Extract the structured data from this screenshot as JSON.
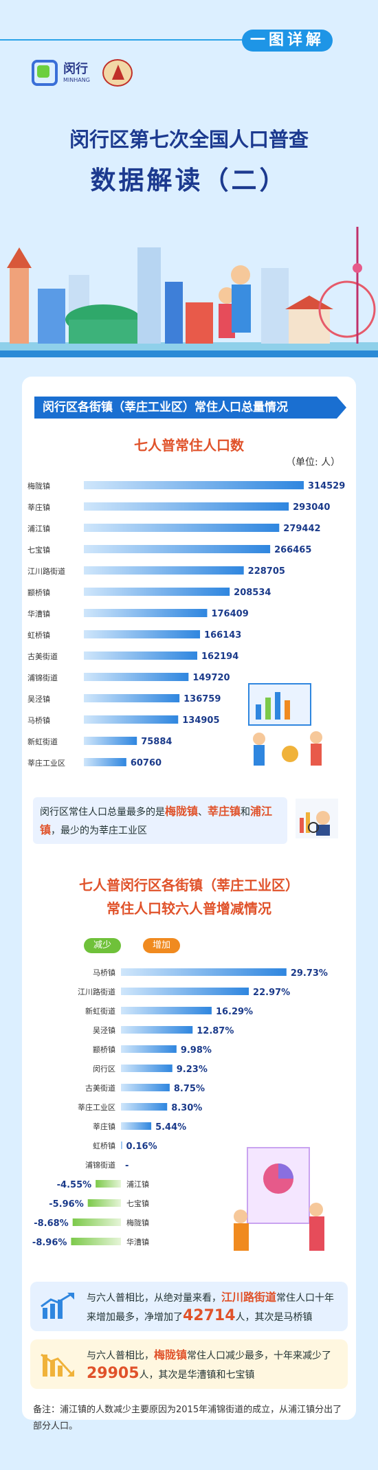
{
  "header": {
    "tag": "一图详解",
    "logo_text": "闵行",
    "logo_en": "MINHANG",
    "title_line1": "闵行区第七次全国人口普查",
    "title_line2": "数据解读（二）"
  },
  "section1": {
    "banner": "闵行区各街镇（莘庄工业区）常住人口总量情况",
    "chart_title": "七人普常住人口数",
    "unit": "（单位: 人）"
  },
  "summary1": {
    "p1": "闵行区常住人口总量最多的是",
    "h1": "梅陇镇",
    "p2": "、",
    "h2": "莘庄镇",
    "p3": "和",
    "h3": "浦江镇",
    "p4": "，最少的为莘庄工业区"
  },
  "section2": {
    "title_a": "七人普闵行区各街镇（莘庄工业区）",
    "title_b": "常住人口较六人普增减情况",
    "legend_dec": "减少",
    "legend_inc": "增加"
  },
  "note1": {
    "p1": "与六人普相比，从绝对量来看，",
    "h1": "江川路街道",
    "p2": "常住人口十年来增加最多，净增加了",
    "big": "42714",
    "p3": "人，其次是马桥镇"
  },
  "note2": {
    "p1": "与六人普相比，",
    "h1": "梅陇镇",
    "p2": "常住人口减少最多，十年来减少了",
    "big": "29905",
    "p3": "人，其次是华漕镇和七宝镇"
  },
  "footnote": "备注：浦江镇的人数减少主要原因为2015年浦锦街道的成立，从浦江镇分出了部分人口。",
  "colors": {
    "accent": "#1e95e6",
    "bar_blue": "#2f86df",
    "increase": "#2f86df",
    "decrease": "#7cc94a",
    "highlight": "#e0522a"
  },
  "chart_data": [
    {
      "type": "bar",
      "orientation": "horizontal",
      "title": "七人普常住人口数",
      "unit": "人",
      "categories": [
        "梅陇镇",
        "莘庄镇",
        "浦江镇",
        "七宝镇",
        "江川路街道",
        "颛桥镇",
        "华漕镇",
        "虹桥镇",
        "古美街道",
        "浦锦街道",
        "吴泾镇",
        "马桥镇",
        "新虹街道",
        "莘庄工业区"
      ],
      "values": [
        314529,
        293040,
        279442,
        266465,
        228705,
        208534,
        176409,
        166143,
        162194,
        149720,
        136759,
        134905,
        75884,
        60760
      ],
      "value_labels": [
        "314529",
        "293040",
        "279442",
        "266465",
        "228705",
        "208534",
        "176409",
        "166143",
        "162194",
        "149720",
        "136759",
        "134905",
        "75884",
        "60760"
      ]
    },
    {
      "type": "bar",
      "orientation": "horizontal-diverging",
      "title": "常住人口较六人普增减情况",
      "unit": "%",
      "categories": [
        "马桥镇",
        "江川路街道",
        "新虹街道",
        "吴泾镇",
        "颛桥镇",
        "闵行区",
        "古美街道",
        "莘庄工业区",
        "莘庄镇",
        "虹桥镇",
        "浦锦街道",
        "浦江镇",
        "七宝镇",
        "梅陇镇",
        "华漕镇"
      ],
      "values": [
        29.73,
        22.97,
        16.29,
        12.87,
        9.98,
        9.23,
        8.75,
        8.3,
        5.44,
        0.16,
        null,
        -4.55,
        -5.96,
        -8.68,
        -8.96
      ],
      "value_labels": [
        "29.73%",
        "22.97%",
        "16.29%",
        "12.87%",
        "9.98%",
        "9.23%",
        "8.75%",
        "8.30%",
        "5.44%",
        "0.16%",
        "-",
        "-4.55%",
        "-5.96%",
        "-8.68%",
        "-8.96%"
      ],
      "legend": [
        "减少",
        "增加"
      ]
    }
  ]
}
